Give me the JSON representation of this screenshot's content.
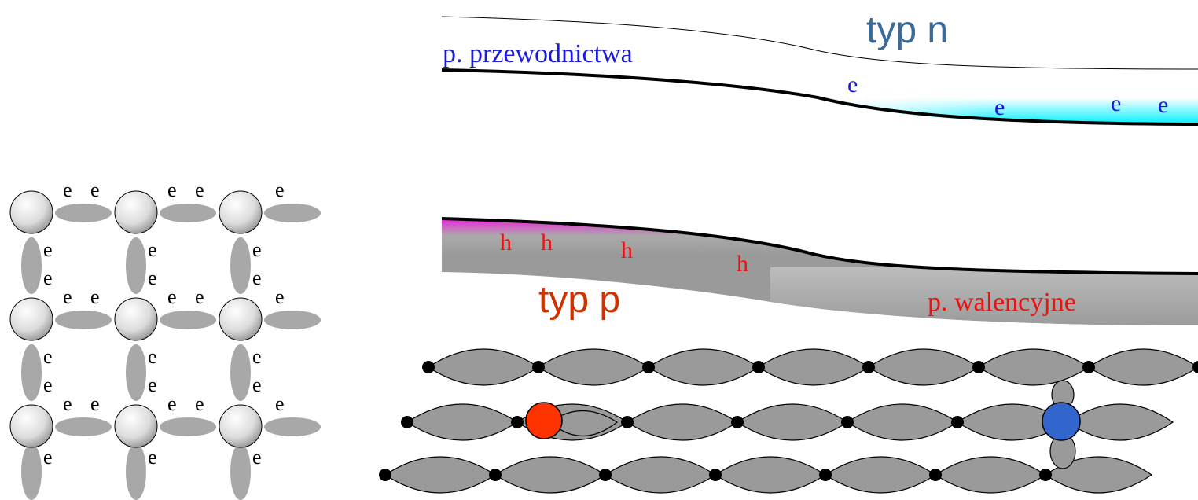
{
  "labels": {
    "n_type": "typ n",
    "p_type": "typ p",
    "conduction_band": "p. przewodnictwa",
    "valence_band": "p. walencyjne"
  },
  "carriers": {
    "electron": "e",
    "hole": "h"
  },
  "lattice": {
    "grid": "3x3",
    "horizontal_bond_label_counts": [
      [
        2,
        2,
        1
      ],
      [
        2,
        2,
        1
      ],
      [
        2,
        2,
        1
      ]
    ],
    "vertical_bond_label_counts": [
      [
        1,
        1,
        1
      ],
      [
        2,
        2,
        2
      ],
      [
        2,
        2,
        2
      ],
      [
        1,
        1,
        1
      ]
    ]
  },
  "band_diagram": {
    "electrons_in_conduction_band": 4,
    "holes_in_valence_band": 4
  },
  "colors": {
    "n_type_label": "#3a6a9a",
    "p_type_label": "#cc3300",
    "conduction_text": "#1a1adc",
    "valence_text": "#ee1111",
    "electron_fill": "#00f0ff",
    "hole_fill": "#ee22dd",
    "valence_band_fill": "#999999",
    "bond_fill": "#a8a8a8",
    "chain_fill": "#9a9a9a",
    "acceptor_atom": "#ff3300",
    "donor_atom": "#3366cc"
  }
}
